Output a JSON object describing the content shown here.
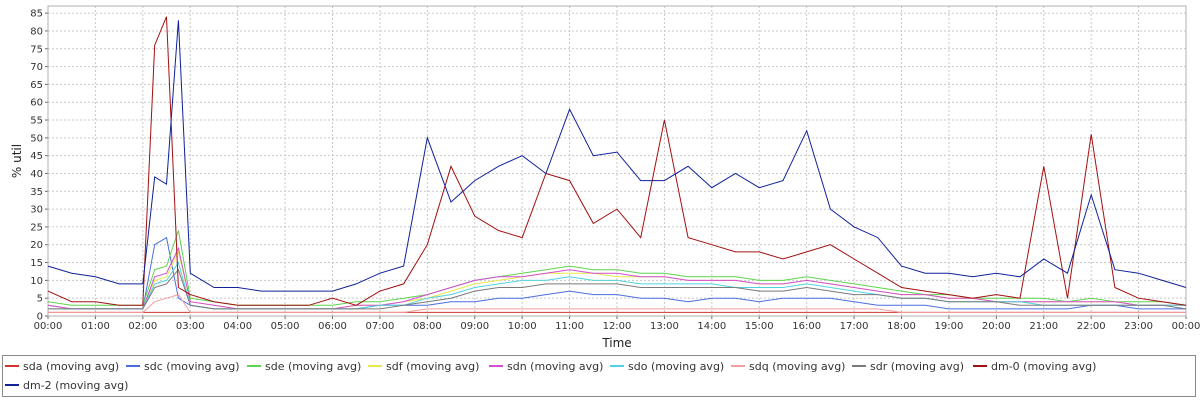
{
  "chart_data": {
    "type": "line",
    "xlabel": "Time",
    "ylabel": "% util",
    "ylim": [
      0,
      87
    ],
    "xlim": [
      "00:00",
      "24:00"
    ],
    "grid": true,
    "legend_position": "bottom",
    "yticks": [
      "0",
      "5",
      "10",
      "15",
      "20",
      "25",
      "30",
      "35",
      "40",
      "45",
      "50",
      "55",
      "60",
      "65",
      "70",
      "75",
      "80",
      "85"
    ],
    "xticks": [
      "00:00",
      "01:00",
      "02:00",
      "03:00",
      "04:00",
      "05:00",
      "06:00",
      "07:00",
      "08:00",
      "09:00",
      "10:00",
      "11:00",
      "12:00",
      "13:00",
      "14:00",
      "15:00",
      "16:00",
      "17:00",
      "18:00",
      "19:00",
      "20:00",
      "21:00",
      "22:00",
      "23:00",
      "00:00"
    ],
    "x_hours": [
      0,
      0.5,
      1,
      1.5,
      2,
      2.25,
      2.5,
      2.75,
      3,
      3.5,
      4,
      4.5,
      5,
      5.5,
      6,
      6.5,
      7,
      7.5,
      8,
      8.5,
      9,
      9.5,
      10,
      10.5,
      11,
      11.5,
      12,
      12.5,
      13,
      13.5,
      14,
      14.5,
      15,
      15.5,
      16,
      16.5,
      17,
      17.5,
      18,
      18.5,
      19,
      19.5,
      20,
      20.5,
      21,
      21.5,
      22,
      22.5,
      23,
      23.5,
      24
    ],
    "series": [
      {
        "name": "sda (moving avg)",
        "color": "#d0342c",
        "values": [
          1,
          1,
          1,
          1,
          1,
          1,
          1,
          1,
          1,
          1,
          1,
          1,
          1,
          1,
          1,
          1,
          1,
          1,
          1,
          1,
          1,
          1,
          1,
          1,
          1,
          1,
          1,
          1,
          1,
          1,
          1,
          1,
          1,
          1,
          1,
          1,
          1,
          1,
          1,
          1,
          1,
          1,
          1,
          1,
          1,
          1,
          1,
          1,
          1,
          1,
          1
        ]
      },
      {
        "name": "sdc (moving avg)",
        "color": "#4a6ee0",
        "values": [
          3,
          2,
          2,
          2,
          2,
          20,
          22,
          5,
          3,
          2,
          2,
          2,
          2,
          2,
          2,
          2,
          3,
          3,
          3,
          4,
          4,
          5,
          5,
          6,
          7,
          6,
          6,
          5,
          5,
          4,
          5,
          5,
          4,
          5,
          5,
          5,
          4,
          3,
          3,
          3,
          2,
          2,
          2,
          2,
          2,
          2,
          3,
          3,
          2,
          2,
          2
        ]
      },
      {
        "name": "sde (moving avg)",
        "color": "#5fd34f",
        "values": [
          4,
          3,
          3,
          3,
          3,
          13,
          14,
          24,
          5,
          4,
          3,
          3,
          3,
          3,
          3,
          4,
          4,
          5,
          6,
          8,
          10,
          11,
          12,
          13,
          14,
          13,
          13,
          12,
          12,
          11,
          11,
          11,
          10,
          10,
          11,
          10,
          9,
          8,
          7,
          6,
          6,
          5,
          5,
          5,
          5,
          4,
          5,
          4,
          4,
          4,
          3
        ]
      },
      {
        "name": "sdf (moving avg)",
        "color": "#e8e84a",
        "values": [
          3,
          2,
          2,
          2,
          2,
          10,
          11,
          18,
          4,
          3,
          2,
          2,
          2,
          2,
          2,
          3,
          3,
          4,
          5,
          7,
          9,
          10,
          11,
          12,
          12,
          12,
          11,
          11,
          11,
          10,
          10,
          10,
          9,
          9,
          10,
          9,
          8,
          7,
          6,
          6,
          5,
          5,
          4,
          4,
          4,
          4,
          4,
          4,
          3,
          3,
          3
        ]
      },
      {
        "name": "sdn (moving avg)",
        "color": "#d34fd3",
        "values": [
          3,
          2,
          2,
          2,
          2,
          11,
          12,
          19,
          4,
          3,
          2,
          2,
          2,
          2,
          2,
          3,
          3,
          4,
          6,
          8,
          10,
          11,
          11,
          12,
          13,
          12,
          12,
          11,
          11,
          10,
          10,
          10,
          9,
          9,
          10,
          9,
          8,
          7,
          6,
          6,
          5,
          5,
          4,
          4,
          4,
          4,
          4,
          4,
          3,
          3,
          3
        ]
      },
      {
        "name": "sdo (moving avg)",
        "color": "#4fd3e0",
        "values": [
          2,
          2,
          2,
          2,
          2,
          9,
          10,
          15,
          3,
          2,
          2,
          2,
          2,
          2,
          2,
          2,
          3,
          3,
          5,
          6,
          8,
          9,
          10,
          10,
          11,
          10,
          10,
          9,
          9,
          9,
          9,
          8,
          8,
          8,
          9,
          8,
          7,
          6,
          5,
          5,
          4,
          4,
          4,
          4,
          3,
          3,
          3,
          3,
          3,
          3,
          3
        ]
      },
      {
        "name": "sdq (moving avg)",
        "color": "#f0a0a0",
        "values": [
          1,
          1,
          1,
          1,
          1,
          4,
          5,
          6,
          1,
          1,
          1,
          1,
          1,
          1,
          1,
          1,
          1,
          1,
          2,
          2,
          2,
          2,
          2,
          2,
          2,
          2,
          2,
          2,
          2,
          2,
          2,
          2,
          2,
          2,
          2,
          2,
          2,
          2,
          1,
          1,
          1,
          1,
          1,
          1,
          1,
          1,
          1,
          1,
          1,
          1,
          1
        ]
      },
      {
        "name": "sdr (moving avg)",
        "color": "#7a7a7a",
        "values": [
          2,
          2,
          2,
          2,
          2,
          8,
          9,
          13,
          3,
          2,
          2,
          2,
          2,
          2,
          2,
          2,
          2,
          3,
          4,
          5,
          7,
          8,
          8,
          9,
          9,
          9,
          9,
          8,
          8,
          8,
          8,
          8,
          7,
          7,
          8,
          7,
          6,
          6,
          5,
          5,
          4,
          4,
          4,
          3,
          3,
          3,
          3,
          3,
          3,
          3,
          2
        ]
      },
      {
        "name": "dm-0 (moving avg)",
        "color": "#a31010",
        "values": [
          7,
          4,
          4,
          3,
          3,
          76,
          84,
          8,
          6,
          4,
          3,
          3,
          3,
          3,
          5,
          3,
          7,
          9,
          20,
          42,
          28,
          24,
          22,
          40,
          38,
          26,
          30,
          22,
          55,
          22,
          20,
          18,
          18,
          16,
          18,
          20,
          16,
          12,
          8,
          7,
          6,
          5,
          6,
          5,
          42,
          5,
          51,
          8,
          5,
          4,
          3
        ]
      },
      {
        "name": "dm-2 (moving avg)",
        "color": "#10219a",
        "values": [
          14,
          12,
          11,
          9,
          9,
          39,
          37,
          83,
          12,
          8,
          8,
          7,
          7,
          7,
          7,
          9,
          12,
          14,
          50,
          32,
          38,
          42,
          45,
          40,
          58,
          45,
          46,
          38,
          38,
          42,
          36,
          40,
          36,
          38,
          52,
          30,
          25,
          22,
          14,
          12,
          12,
          11,
          12,
          11,
          16,
          12,
          34,
          13,
          12,
          10,
          8
        ]
      }
    ]
  }
}
